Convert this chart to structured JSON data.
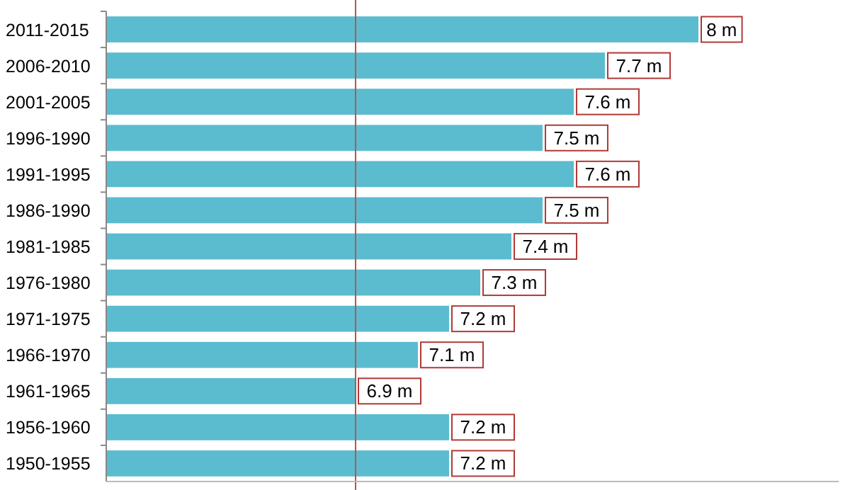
{
  "chart_data": {
    "type": "bar",
    "orientation": "horizontal",
    "categories": [
      "2011-2015",
      "2006-2010",
      "2001-2005",
      "1996-1990",
      "1991-1995",
      "1986-1990",
      "1981-1985",
      "1976-1980",
      "1971-1975",
      "1966-1970",
      "1961-1965",
      "1956-1960",
      "1950-1955"
    ],
    "values": [
      8,
      7.7,
      7.6,
      7.5,
      7.6,
      7.5,
      7.4,
      7.3,
      7.2,
      7.1,
      6.9,
      7.2,
      7.2
    ],
    "value_labels": [
      "8 m",
      "7.7 m",
      "7.6 m",
      "7.5 m",
      "7.6 m",
      "7.5 m",
      "7.4 m",
      "7.3 m",
      "7.2 m",
      "7.1 m",
      "6.9 m",
      "7.2 m",
      "7.2 m"
    ],
    "color": "#5bbccf",
    "xlim": [
      6.1,
      8.45
    ],
    "tick_labels": "y",
    "ref_lines": [
      {
        "axis": "x",
        "value": 6.9,
        "color": "#c0504d"
      }
    ]
  }
}
